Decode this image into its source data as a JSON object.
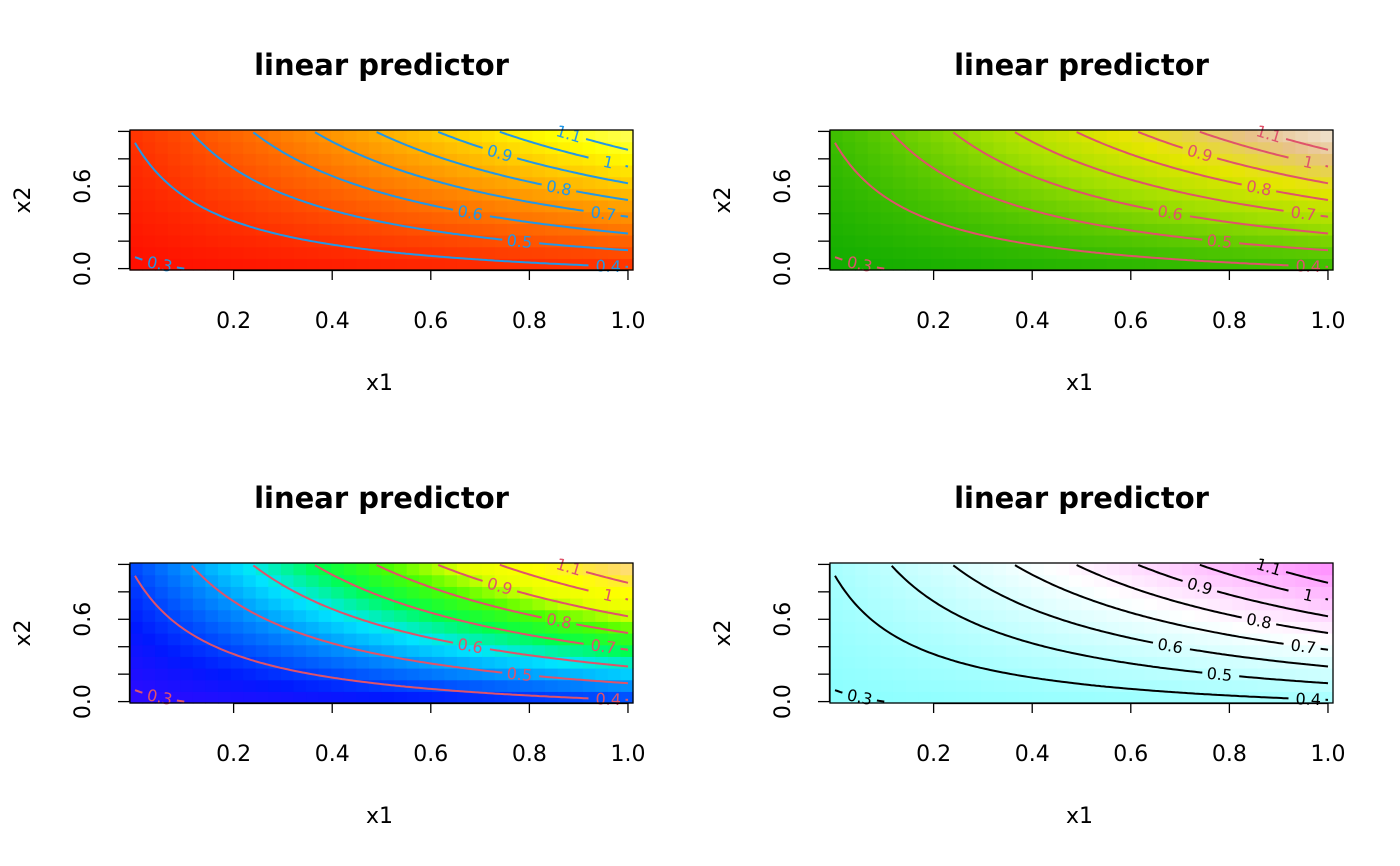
{
  "chart_data": [
    {
      "type": "heatmap",
      "title": "linear predictor",
      "xlabel": "x1",
      "ylabel": "x2",
      "xlim": [
        0,
        1
      ],
      "ylim": [
        0,
        1
      ],
      "x_ticks": [
        "0.2",
        "0.4",
        "0.6",
        "0.8",
        "1.0"
      ],
      "y_ticks": [
        "0.0",
        "0.6"
      ],
      "z_range": [
        0.25,
        1.25
      ],
      "palette": "heat",
      "palette_colors": [
        "#ff0000",
        "#ff4000",
        "#ff8000",
        "#ffbf00",
        "#ffff00",
        "#ffff80"
      ],
      "contour_color": "#2297e6",
      "contour_levels": [
        0.3,
        0.4,
        0.5,
        0.6,
        0.7,
        0.8,
        0.9,
        1,
        1.1
      ],
      "contour_labels": [
        "0.3",
        "0.4",
        "0.5",
        "0.6",
        "0.7",
        "0.8",
        "0.9",
        "1",
        "1.1"
      ]
    },
    {
      "type": "heatmap",
      "title": "linear predictor",
      "xlabel": "x1",
      "ylabel": "x2",
      "xlim": [
        0,
        1
      ],
      "ylim": [
        0,
        1
      ],
      "x_ticks": [
        "0.2",
        "0.4",
        "0.6",
        "0.8",
        "1.0"
      ],
      "y_ticks": [
        "0.0",
        "0.6"
      ],
      "z_range": [
        0.25,
        1.25
      ],
      "palette": "terrain",
      "palette_colors": [
        "#00a600",
        "#4cc400",
        "#a3e000",
        "#e6e600",
        "#e8c28a",
        "#f2f2f2"
      ],
      "contour_color": "#df536b",
      "contour_levels": [
        0.3,
        0.4,
        0.5,
        0.6,
        0.7,
        0.8,
        0.9,
        1,
        1.1
      ],
      "contour_labels": [
        "0.3",
        "0.4",
        "0.5",
        "0.6",
        "0.7",
        "0.8",
        "0.9",
        "1",
        "1.1"
      ]
    },
    {
      "type": "heatmap",
      "title": "linear predictor",
      "xlabel": "x1",
      "ylabel": "x2",
      "xlim": [
        0,
        1
      ],
      "ylim": [
        0,
        1
      ],
      "x_ticks": [
        "0.2",
        "0.4",
        "0.6",
        "0.8",
        "1.0"
      ],
      "y_ticks": [
        "0.0",
        "0.6"
      ],
      "z_range": [
        0.25,
        1.25
      ],
      "palette": "topo",
      "palette_colors": [
        "#4c00ff",
        "#0019ff",
        "#0080ff",
        "#00e5ff",
        "#00ff4d",
        "#4dff00",
        "#e6ff00",
        "#ffff00",
        "#ffde59",
        "#ffe0b3"
      ],
      "contour_color": "#df536b",
      "contour_levels": [
        0.3,
        0.4,
        0.5,
        0.6,
        0.7,
        0.8,
        0.9,
        1,
        1.1
      ],
      "contour_labels": [
        "0.3",
        "0.4",
        "0.5",
        "0.6",
        "0.7",
        "0.8",
        "0.9",
        "1",
        "1.1"
      ]
    },
    {
      "type": "heatmap",
      "title": "linear predictor",
      "xlabel": "x1",
      "ylabel": "x2",
      "xlim": [
        0,
        1
      ],
      "ylim": [
        0,
        1
      ],
      "x_ticks": [
        "0.2",
        "0.4",
        "0.6",
        "0.8",
        "1.0"
      ],
      "y_ticks": [
        "0.0",
        "0.6"
      ],
      "z_range": [
        0.25,
        1.25
      ],
      "palette": "cm",
      "palette_colors": [
        "#80ffff",
        "#bfffff",
        "#ffffff",
        "#ffbfff",
        "#ff80ff"
      ],
      "contour_color": "#000000",
      "contour_levels": [
        0.3,
        0.4,
        0.5,
        0.6,
        0.7,
        0.8,
        0.9,
        1,
        1.1
      ],
      "contour_labels": [
        "0.3",
        "0.4",
        "0.5",
        "0.6",
        "0.7",
        "0.8",
        "0.9",
        "1",
        "1.1"
      ]
    }
  ]
}
